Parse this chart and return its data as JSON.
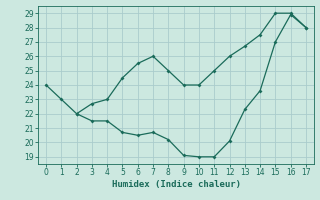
{
  "xlabel": "Humidex (Indice chaleur)",
  "bg_color": "#cce8e0",
  "grid_color": "#aacccc",
  "line_color": "#1a6b5a",
  "xlim": [
    -0.5,
    17.5
  ],
  "ylim": [
    18.5,
    29.5
  ],
  "xticks": [
    0,
    1,
    2,
    3,
    4,
    5,
    6,
    7,
    8,
    9,
    10,
    11,
    12,
    13,
    14,
    15,
    16,
    17
  ],
  "yticks": [
    19,
    20,
    21,
    22,
    23,
    24,
    25,
    26,
    27,
    28,
    29
  ],
  "series1_x": [
    0,
    1,
    2,
    3,
    4,
    5,
    6,
    7,
    8,
    9,
    10,
    11,
    12,
    13,
    14,
    15,
    16,
    17
  ],
  "series1_y": [
    24.0,
    23.0,
    22.0,
    22.7,
    23.0,
    24.5,
    25.5,
    26.0,
    25.0,
    24.0,
    24.0,
    25.0,
    26.0,
    26.7,
    27.5,
    29.0,
    29.0,
    28.0
  ],
  "series2_x": [
    2,
    3,
    4,
    5,
    6,
    7,
    8,
    9,
    10,
    11,
    12,
    13,
    14,
    15,
    16,
    17
  ],
  "series2_y": [
    22.0,
    21.5,
    21.5,
    20.7,
    20.5,
    20.7,
    20.2,
    19.1,
    19.0,
    19.0,
    20.1,
    22.3,
    23.6,
    27.0,
    28.9,
    28.0
  ]
}
